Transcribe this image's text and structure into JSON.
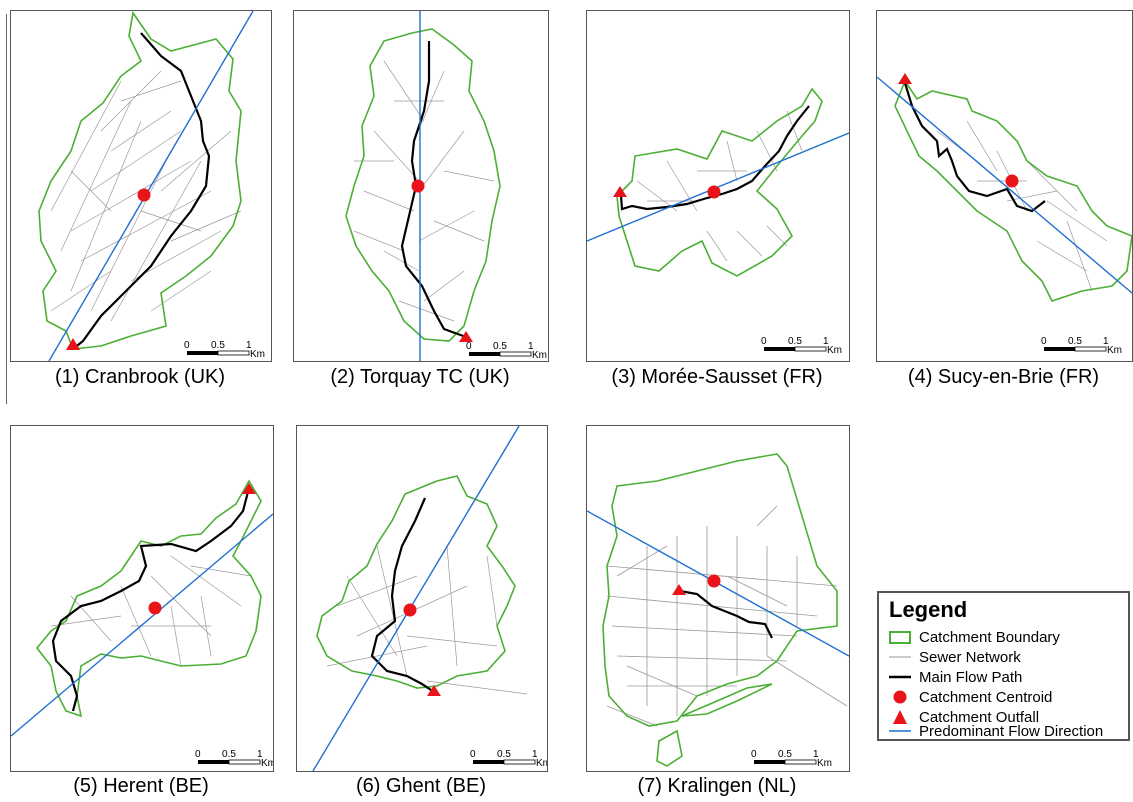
{
  "panels": [
    {
      "id": "p1",
      "caption": "(1) Cranbrook (UK)",
      "scale": {
        "zero": "0",
        "half": "0.5",
        "one": "1",
        "unit": "Km"
      }
    },
    {
      "id": "p2",
      "caption": "(2) Torquay TC (UK)",
      "scale": {
        "zero": "0",
        "half": "0.5",
        "one": "1",
        "unit": "Km"
      }
    },
    {
      "id": "p3",
      "caption": "(3) Morée-Sausset (FR)",
      "scale": {
        "zero": "0",
        "half": "0.5",
        "one": "1",
        "unit": "Km"
      }
    },
    {
      "id": "p4",
      "caption": "(4) Sucy-en-Brie (FR)",
      "scale": {
        "zero": "0",
        "half": "0.5",
        "one": "1",
        "unit": "Km"
      }
    },
    {
      "id": "p5",
      "caption": "(5) Herent (BE)",
      "scale": {
        "zero": "0",
        "half": "0.5",
        "one": "1",
        "unit": "Km"
      }
    },
    {
      "id": "p6",
      "caption": "(6) Ghent (BE)",
      "scale": {
        "zero": "0",
        "half": "0.5",
        "one": "1",
        "unit": "Km"
      }
    },
    {
      "id": "p7",
      "caption": "(7) Kralingen (NL)",
      "scale": {
        "zero": "0",
        "half": "0.5",
        "one": "1",
        "unit": "Km"
      }
    }
  ],
  "legend": {
    "title": "Legend",
    "items": [
      {
        "label": "Catchment Boundary",
        "icon": "green-rect-outline-icon"
      },
      {
        "label": "Sewer Network",
        "icon": "thin-grey-line-icon"
      },
      {
        "label": "Main Flow Path",
        "icon": "thick-black-line-icon"
      },
      {
        "label": "Catchment Centroid",
        "icon": "red-circle-icon"
      },
      {
        "label": "Catchment Outfall",
        "icon": "red-triangle-icon"
      },
      {
        "label": "Predominant Flow Direction",
        "icon": "blue-line-icon"
      }
    ]
  },
  "colors": {
    "boundary": "#4caf35",
    "sewer": "#9a9a9a",
    "flowpath": "#000000",
    "centroid": "#e8141a",
    "outfall": "#e8141a",
    "direction": "#1f6fd1"
  }
}
